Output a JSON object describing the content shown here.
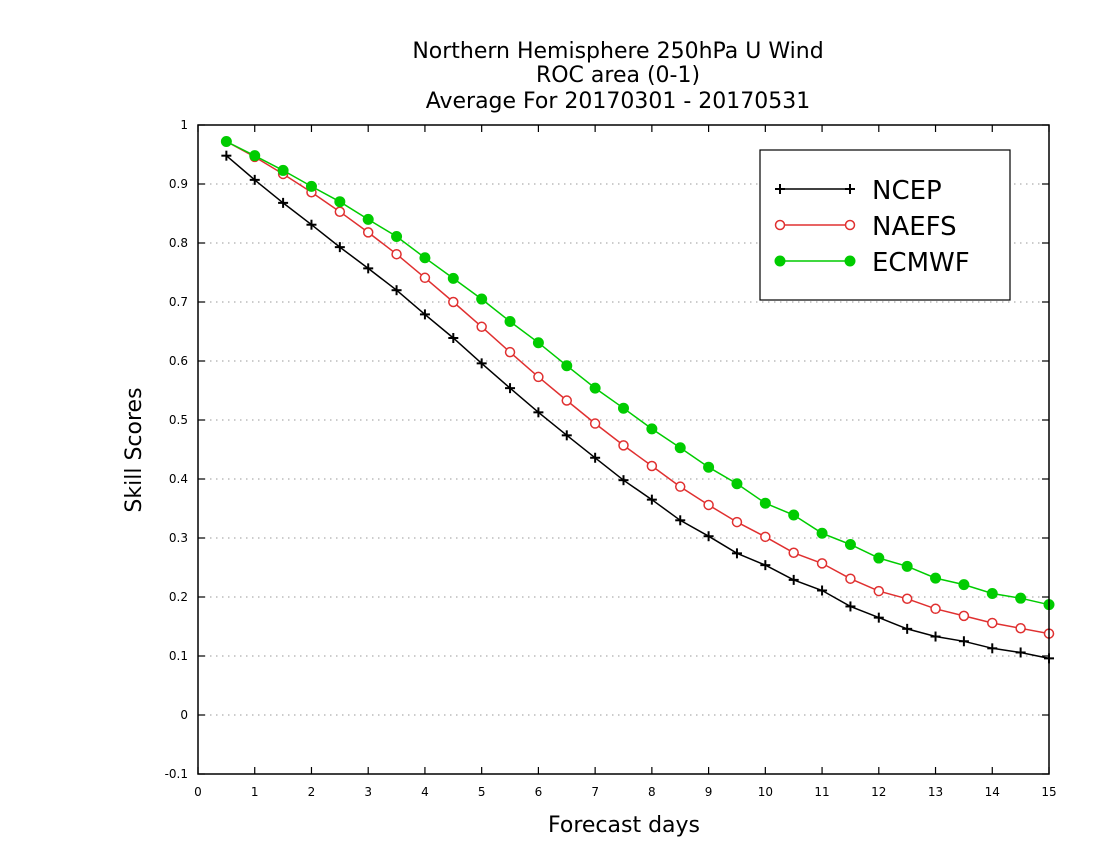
{
  "chart_data": {
    "type": "line",
    "title": [
      "Northern Hemisphere 250hPa U Wind",
      "ROC area (0-1)",
      "Average For 20170301 - 20170531"
    ],
    "xlabel": "Forecast days",
    "ylabel": "Skill Scores",
    "xlim": [
      0,
      15
    ],
    "ylim": [
      -0.1,
      1
    ],
    "xticks": [
      0,
      1,
      2,
      3,
      4,
      5,
      6,
      7,
      8,
      9,
      10,
      11,
      12,
      13,
      14,
      15
    ],
    "yticks": [
      -0.1,
      0,
      0.1,
      0.2,
      0.3,
      0.4,
      0.5,
      0.6,
      0.7,
      0.8,
      0.9,
      1
    ],
    "grid": "horizontal dotted",
    "legend_position": "top-right",
    "x": [
      0.5,
      1,
      1.5,
      2,
      2.5,
      3,
      3.5,
      4,
      4.5,
      5,
      5.5,
      6,
      6.5,
      7,
      7.5,
      8,
      8.5,
      9,
      9.5,
      10,
      10.5,
      11,
      11.5,
      12,
      12.5,
      13,
      13.5,
      14,
      14.5,
      15
    ],
    "series": [
      {
        "name": "NCEP",
        "color": "#000000",
        "marker": "plus",
        "values": [
          0.948,
          0.907,
          0.868,
          0.831,
          0.793,
          0.757,
          0.72,
          0.679,
          0.639,
          0.596,
          0.554,
          0.513,
          0.474,
          0.436,
          0.398,
          0.365,
          0.33,
          0.303,
          0.274,
          0.254,
          0.229,
          0.211,
          0.184,
          0.165,
          0.146,
          0.133,
          0.125,
          0.113,
          0.106,
          0.096
        ]
      },
      {
        "name": "NAEFS",
        "color": "#e03030",
        "marker": "open-circle",
        "values": [
          0.972,
          0.946,
          0.917,
          0.886,
          0.853,
          0.818,
          0.781,
          0.741,
          0.7,
          0.658,
          0.615,
          0.573,
          0.533,
          0.494,
          0.457,
          0.422,
          0.387,
          0.356,
          0.327,
          0.302,
          0.275,
          0.257,
          0.231,
          0.21,
          0.197,
          0.18,
          0.168,
          0.156,
          0.147,
          0.138
        ]
      },
      {
        "name": "ECMWF",
        "color": "#00cc00",
        "marker": "filled-circle",
        "values": [
          0.972,
          0.948,
          0.923,
          0.896,
          0.87,
          0.84,
          0.811,
          0.775,
          0.74,
          0.705,
          0.667,
          0.631,
          0.592,
          0.554,
          0.52,
          0.485,
          0.453,
          0.42,
          0.392,
          0.359,
          0.339,
          0.308,
          0.289,
          0.266,
          0.252,
          0.232,
          0.221,
          0.206,
          0.198,
          0.187
        ]
      }
    ]
  }
}
